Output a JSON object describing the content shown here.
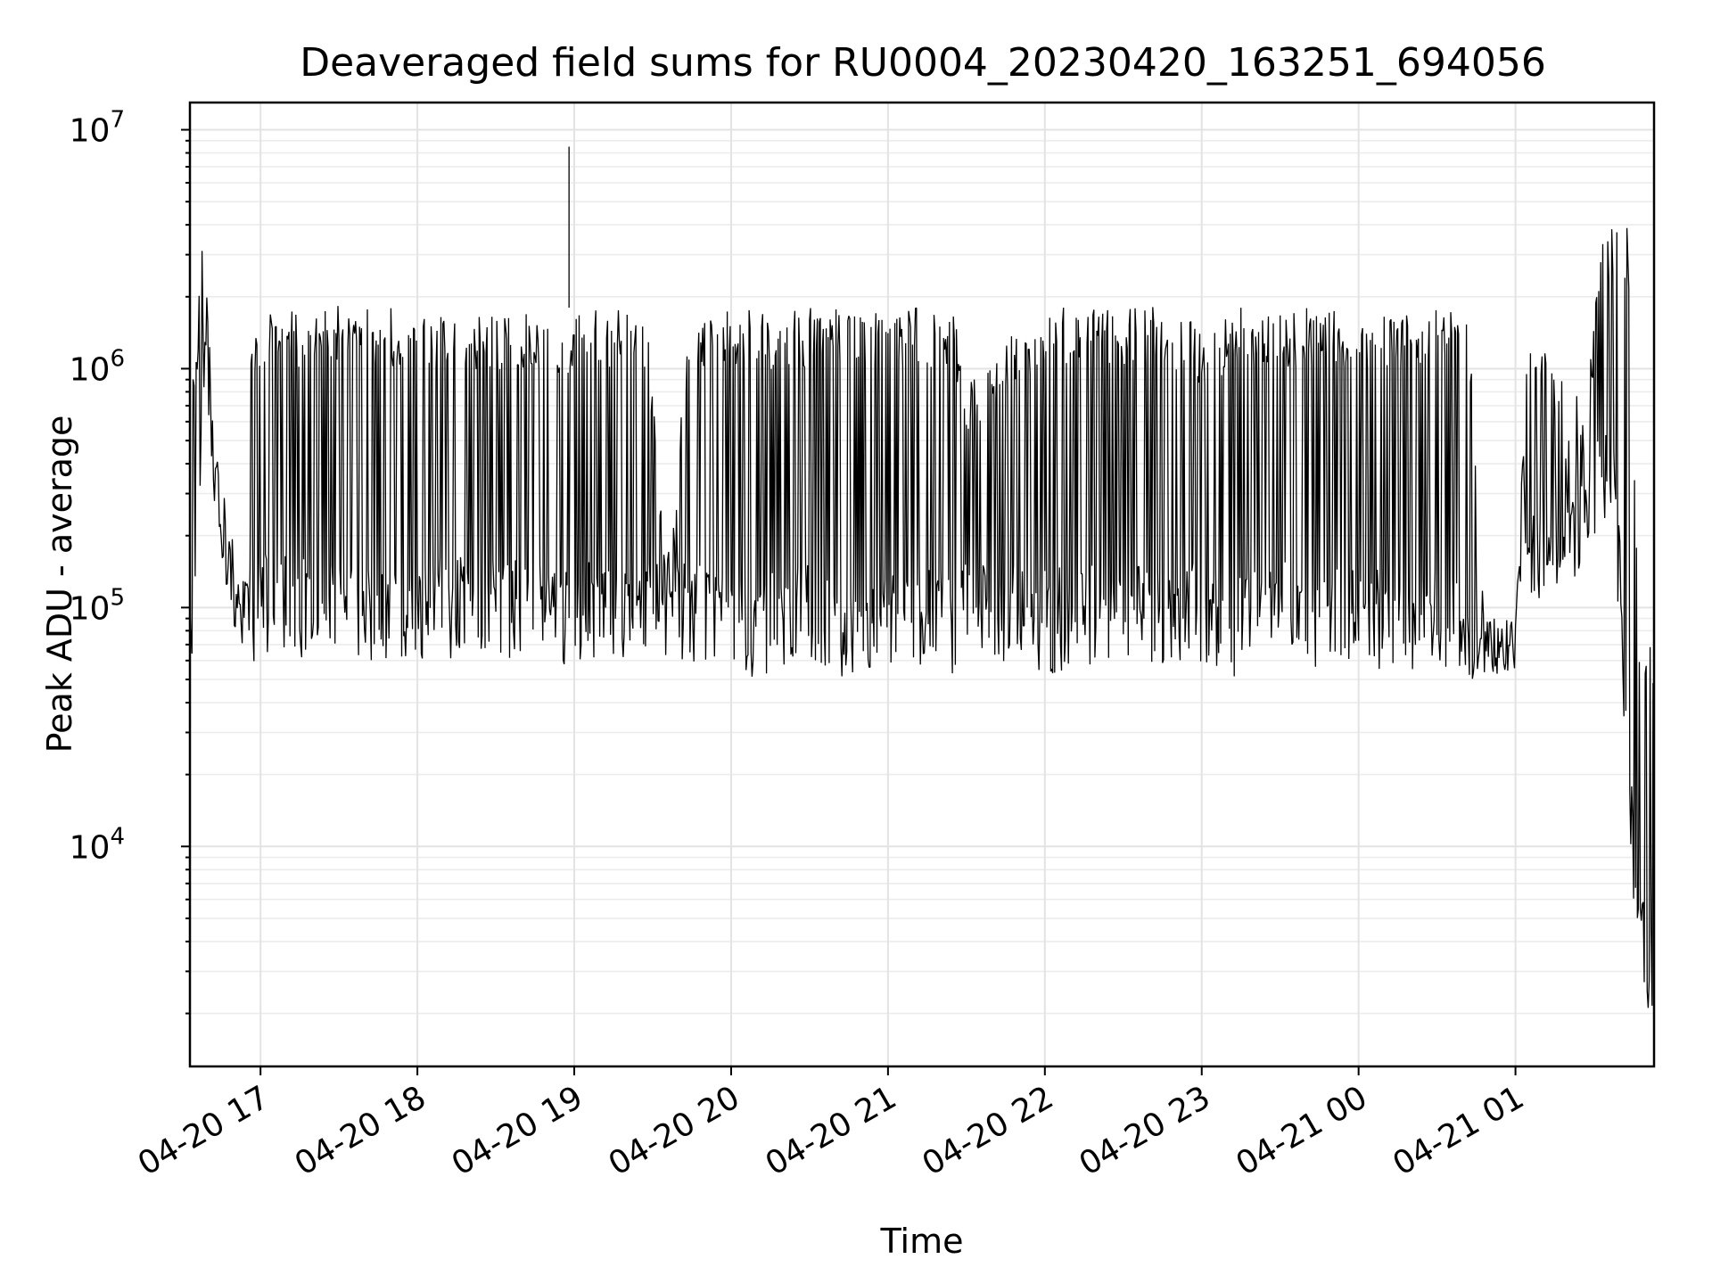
{
  "chart_data": {
    "type": "line",
    "title": "Deaveraged field sums for RU0004_20230420_163251_694056",
    "xlabel": "Time",
    "ylabel": "Peak ADU - average",
    "yscale": "log",
    "grid": true,
    "xlim": [
      "2023-04-20 16:33",
      "2023-04-21 01:53"
    ],
    "ylim": [
      1200,
      13000000
    ],
    "x_ticks": [
      {
        "value": "2023-04-20 17:00",
        "label": "04-20 17"
      },
      {
        "value": "2023-04-20 18:00",
        "label": "04-20 18"
      },
      {
        "value": "2023-04-20 19:00",
        "label": "04-20 19"
      },
      {
        "value": "2023-04-20 20:00",
        "label": "04-20 20"
      },
      {
        "value": "2023-04-20 21:00",
        "label": "04-20 21"
      },
      {
        "value": "2023-04-20 22:00",
        "label": "04-20 22"
      },
      {
        "value": "2023-04-20 23:00",
        "label": "04-20 23"
      },
      {
        "value": "2023-04-21 00:00",
        "label": "04-21 00"
      },
      {
        "value": "2023-04-21 01:00",
        "label": "04-21 01"
      }
    ],
    "y_ticks": [
      {
        "value": 10000,
        "base": "10",
        "exp": "4"
      },
      {
        "value": 100000,
        "base": "10",
        "exp": "5"
      },
      {
        "value": 1000000,
        "base": "10",
        "exp": "6"
      },
      {
        "value": 10000000,
        "base": "10",
        "exp": "7"
      }
    ],
    "series": [
      {
        "color": "#000000",
        "x": [
          "2023-04-20 16:33",
          "2023-04-20 16:35",
          "2023-04-20 16:38",
          "2023-04-20 16:42",
          "2023-04-20 16:45",
          "2023-04-20 16:48",
          "2023-04-20 16:50",
          "2023-04-20 16:53",
          "2023-04-20 16:56",
          "2023-04-20 16:59",
          "2023-04-20 17:00",
          "2023-04-20 17:15",
          "2023-04-20 17:30",
          "2023-04-20 17:45",
          "2023-04-20 18:00",
          "2023-04-20 18:15",
          "2023-04-20 18:30",
          "2023-04-20 18:45",
          "2023-04-20 18:58",
          "2023-04-20 19:00",
          "2023-04-20 19:15",
          "2023-04-20 19:28",
          "2023-04-20 19:35",
          "2023-04-20 19:45",
          "2023-04-20 20:00",
          "2023-04-20 20:08",
          "2023-04-20 20:15",
          "2023-04-20 20:30",
          "2023-04-20 20:45",
          "2023-04-20 20:55",
          "2023-04-20 21:00",
          "2023-04-20 21:15",
          "2023-04-20 21:25",
          "2023-04-20 21:30",
          "2023-04-20 21:45",
          "2023-04-20 22:00",
          "2023-04-20 22:15",
          "2023-04-20 22:30",
          "2023-04-20 22:45",
          "2023-04-20 23:00",
          "2023-04-20 23:08",
          "2023-04-20 23:15",
          "2023-04-20 23:30",
          "2023-04-20 23:45",
          "2023-04-21 00:00",
          "2023-04-21 00:15",
          "2023-04-21 00:30",
          "2023-04-21 00:42",
          "2023-04-21 00:50",
          "2023-04-21 01:00",
          "2023-04-21 01:05",
          "2023-04-21 01:12",
          "2023-04-21 01:20",
          "2023-04-21 01:28",
          "2023-04-21 01:33",
          "2023-04-21 01:38",
          "2023-04-21 01:43",
          "2023-04-21 01:47",
          "2023-04-21 01:50",
          "2023-04-21 01:53"
        ],
        "y_high": [
          1300000,
          1200000,
          4200000,
          800000,
          400000,
          250000,
          200000,
          120000,
          1400000,
          1800000,
          1800000,
          1800000,
          1850000,
          1800000,
          1800000,
          1750000,
          1700000,
          1700000,
          1700000,
          1800000,
          1800000,
          1700000,
          150000,
          1800000,
          1850000,
          1800000,
          1700000,
          1800000,
          1800000,
          1700000,
          1800000,
          1800000,
          1700000,
          900000,
          1500000,
          1800000,
          1900000,
          1800000,
          1900000,
          1500000,
          1600000,
          1800000,
          1800000,
          1800000,
          1800000,
          1700000,
          1800000,
          1700000,
          90000,
          90000,
          1600000,
          1400000,
          800000,
          1000000,
          3500000,
          4200000,
          4000000,
          100000,
          80000,
          70000
        ],
        "y_low": [
          45000,
          48000,
          700000,
          300000,
          150000,
          100000,
          80000,
          60000,
          55000,
          55000,
          60000,
          58000,
          55000,
          55000,
          60000,
          58000,
          60000,
          55000,
          50000,
          60000,
          58000,
          60000,
          60000,
          55000,
          60000,
          50000,
          50000,
          55000,
          50000,
          42000,
          55000,
          52000,
          50000,
          55000,
          55000,
          52000,
          55000,
          55000,
          55000,
          55000,
          50000,
          52000,
          55000,
          55000,
          55000,
          52000,
          55000,
          48000,
          50000,
          55000,
          110000,
          100000,
          120000,
          150000,
          250000,
          180000,
          16000,
          2400,
          2000,
          1800
        ],
        "spikes": [
          {
            "x": "2023-04-20 18:58",
            "y": 8500000
          }
        ]
      }
    ]
  }
}
